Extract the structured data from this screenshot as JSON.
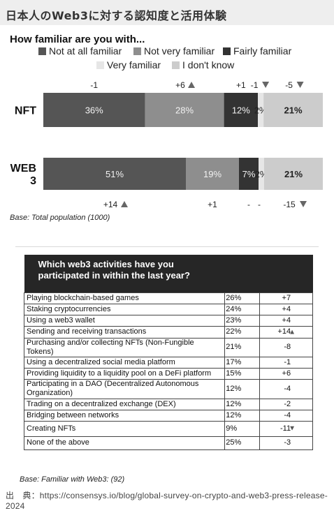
{
  "header": {
    "title": "日本人のWeb3に対する認知度と活用体験"
  },
  "chart_data": [
    {
      "type": "bar",
      "orientation": "horizontal",
      "stacked": true,
      "normalized": true,
      "title": "How familiar are you with...",
      "categories": [
        "NFT",
        "WEB 3"
      ],
      "category_lines": [
        [
          "NFT"
        ],
        [
          "WEB",
          "3"
        ]
      ],
      "series": [
        {
          "name": "Not at all familiar",
          "color": "#555555",
          "values": [
            36,
            51
          ],
          "labels": [
            "36%",
            "51%"
          ],
          "changes": [
            "-1",
            "+14"
          ],
          "change_dirs": [
            "",
            "up"
          ]
        },
        {
          "name": "Not very familiar",
          "color": "#8e8e8e",
          "values": [
            28,
            19
          ],
          "labels": [
            "28%",
            "19%"
          ],
          "changes": [
            "+6",
            "+1"
          ],
          "change_dirs": [
            "up",
            ""
          ]
        },
        {
          "name": "Fairly familiar",
          "color": "#333333",
          "values": [
            12,
            7
          ],
          "labels": [
            "12%",
            "7%"
          ],
          "changes": [
            "+1",
            "-"
          ],
          "change_dirs": [
            "",
            ""
          ]
        },
        {
          "name": "Very familiar",
          "color": "#e6e6e6",
          "values": [
            2,
            2
          ],
          "labels": [
            "2%",
            "2%"
          ],
          "changes": [
            "-1",
            "-"
          ],
          "change_dirs": [
            "down",
            ""
          ]
        },
        {
          "name": "I don't know",
          "color": "#cccccc",
          "values": [
            21,
            21
          ],
          "labels": [
            "21%",
            "21%"
          ],
          "changes": [
            "-5",
            "-15"
          ],
          "change_dirs": [
            "down",
            "down"
          ]
        }
      ],
      "base_note": "Base: Total population (1000)"
    },
    {
      "type": "table",
      "title": "Which web3 activities have you participated in within the last year?",
      "rows": [
        {
          "activity": "Playing blockchain-based games",
          "pct": "26%",
          "change": "+7",
          "trend": ""
        },
        {
          "activity": "Staking cryptocurrencies",
          "pct": "24%",
          "change": "+4",
          "trend": ""
        },
        {
          "activity": "Using a web3 wallet",
          "pct": "23%",
          "change": "+4",
          "trend": ""
        },
        {
          "activity": "Sending and receiving transactions",
          "pct": "22%",
          "change": "+14",
          "trend": "up"
        },
        {
          "activity": "Purchasing and/or collecting NFTs (Non-Fungible Tokens)",
          "pct": "21%",
          "change": "-8",
          "trend": ""
        },
        {
          "activity": "Using a decentralized social media platform",
          "pct": "17%",
          "change": "-1",
          "trend": ""
        },
        {
          "activity": "Providing liquidity to a liquidity pool on a DeFi platform",
          "pct": "15%",
          "change": "+6",
          "trend": ""
        },
        {
          "activity": "Participating in a DAO (Decentralized Autonomous Organization)",
          "pct": "12%",
          "change": "-4",
          "trend": ""
        },
        {
          "activity": "Trading on a decentralized exchange (DEX)",
          "pct": "12%",
          "change": "-2",
          "trend": ""
        },
        {
          "activity": "Bridging between networks",
          "pct": "12%",
          "change": "-4",
          "trend": ""
        },
        {
          "activity": "Creating NFTs",
          "pct": "9%",
          "change": "-11",
          "trend": "down"
        },
        {
          "activity": "None of the above",
          "pct": "25%",
          "change": "-3",
          "trend": ""
        }
      ],
      "base_note": "Base: Familiar with Web3: (92)"
    }
  ],
  "source": "出　典：https://consensys.io/blog/global-survey-on-crypto-and-web3-press-release-2024"
}
